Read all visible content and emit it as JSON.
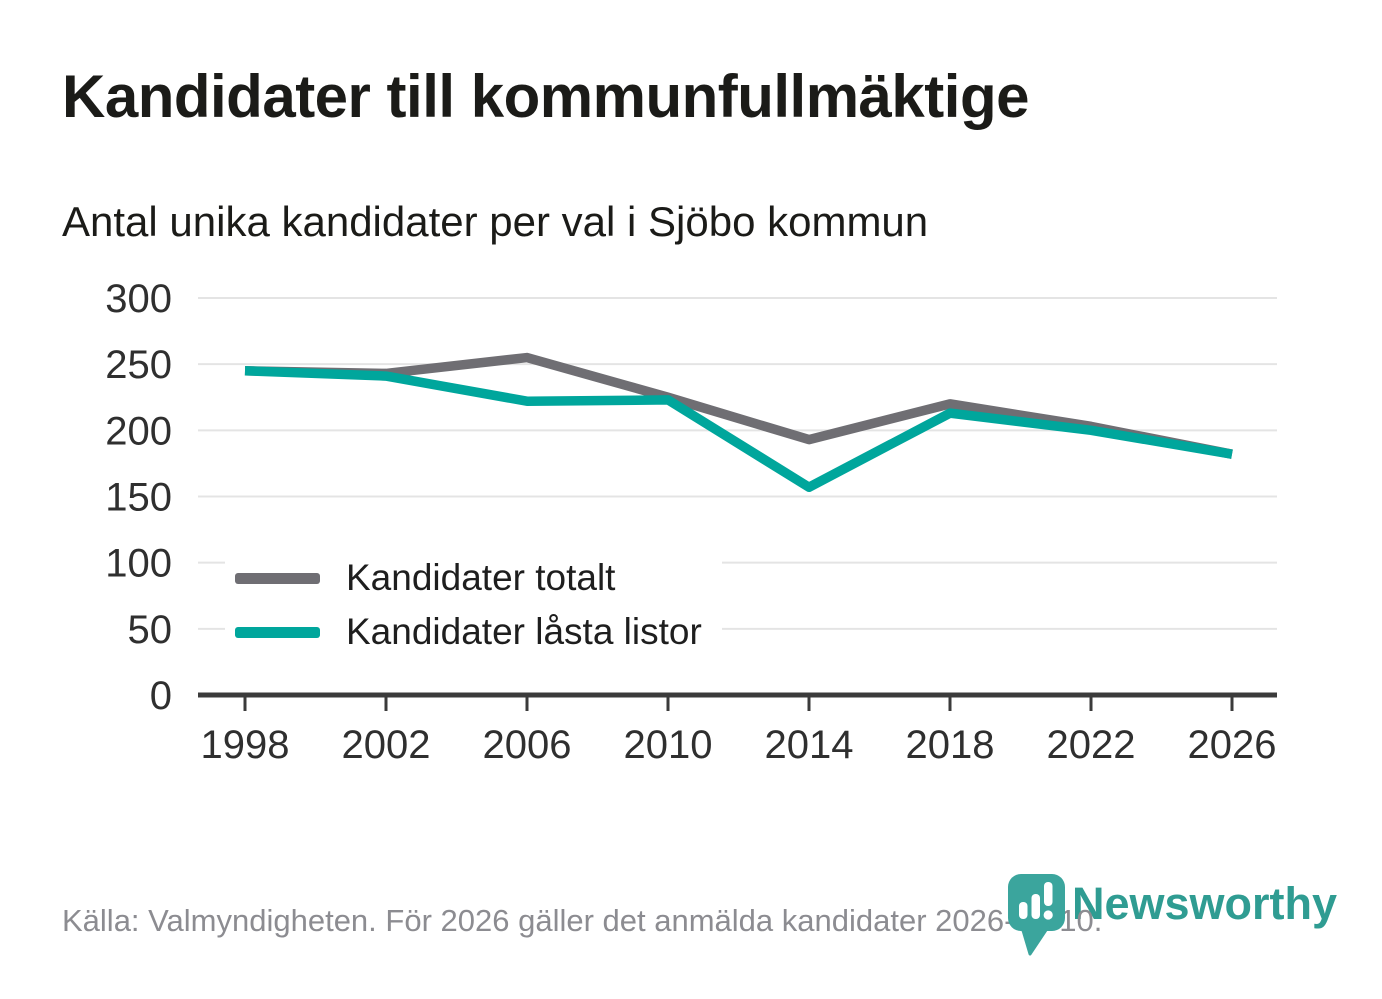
{
  "header": {
    "title": "Kandidater till kommunfullmäktige",
    "subtitle": "Antal unika kandidater per val i Sjöbo kommun"
  },
  "chart_data": {
    "type": "line",
    "x": [
      "1998",
      "2002",
      "2006",
      "2010",
      "2014",
      "2018",
      "2022",
      "2026"
    ],
    "series": [
      {
        "name": "Kandidater totalt",
        "color": "#6F6E73",
        "values": [
          245,
          243,
          255,
          225,
          193,
          220,
          203,
          182
        ]
      },
      {
        "name": "Kandidater låsta listor",
        "color": "#00A69C",
        "values": [
          245,
          241,
          222,
          223,
          157,
          213,
          200,
          182
        ]
      }
    ],
    "title": "Kandidater till kommunfullmäktige",
    "subtitle": "Antal unika kandidater per val i Sjöbo kommun",
    "xlabel": "",
    "ylabel": "",
    "ylim": [
      0,
      300
    ],
    "yticks": [
      0,
      50,
      100,
      150,
      200,
      250,
      300
    ],
    "grid": true,
    "legend_position": "inside bottom-left"
  },
  "footer": {
    "source": "Källa: Valmyndigheten. För 2026 gäller det anmälda kandidater 2026-04-10.",
    "brand": "Newsworthy"
  },
  "colors": {
    "background": "#FFFFFF",
    "title_text": "#1B1B18",
    "axis_text": "#2F2F2F",
    "grid_line": "#E4E4E4",
    "axis_line": "#3B3B3B",
    "legend_text": "#1E1E1E",
    "source_text": "#8C8C91",
    "brand_wordmark_teal": "#2F9C92",
    "brand_pin_teal": "#3BA59D"
  }
}
